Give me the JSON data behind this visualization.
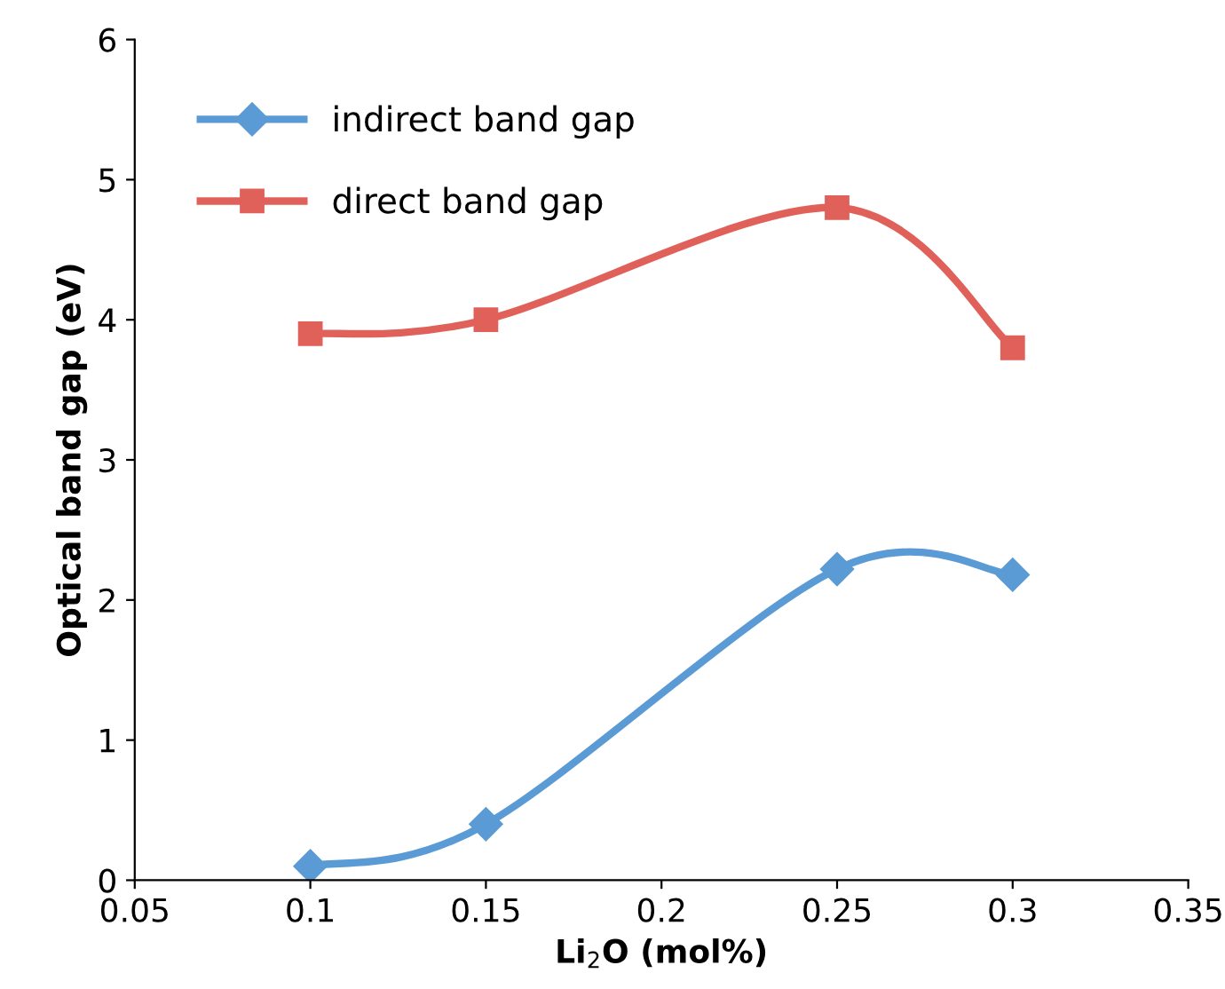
{
  "chart_data": {
    "type": "line",
    "xlabel": "Li$_{2}$O (mol%)",
    "ylabel": "Optical band gap (eV)",
    "x": [
      0.1,
      0.15,
      0.25,
      0.3
    ],
    "series": [
      {
        "name": "indirect band gap",
        "color": "#5b9bd5",
        "values": [
          0.1,
          0.4,
          2.22,
          2.18
        ],
        "marker": "diamond"
      },
      {
        "name": "direct band gap",
        "color": "#e0605a",
        "values": [
          3.9,
          4.0,
          4.8,
          3.8
        ],
        "marker": "square"
      }
    ],
    "xlim": [
      0.05,
      0.35
    ],
    "xticks": [
      0.05,
      0.1,
      0.15,
      0.2,
      0.25,
      0.3,
      0.35
    ],
    "ylim": [
      0,
      6
    ],
    "yticks": [
      0,
      1,
      2,
      3,
      4,
      5,
      6
    ],
    "grid": false,
    "legend": "top left",
    "line_style": "solid"
  }
}
